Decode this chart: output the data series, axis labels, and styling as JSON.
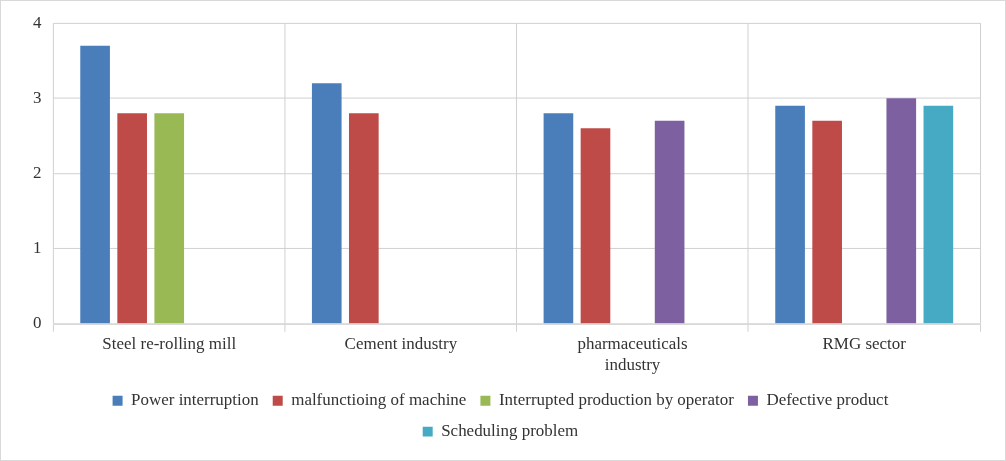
{
  "chart_data": {
    "type": "bar",
    "categories": [
      "Steel re-rolling mill",
      "Cement industry",
      "pharmaceuticals industry",
      "RMG sector"
    ],
    "series": [
      {
        "name": "Power interruption",
        "color": "#4a7ebb",
        "values": [
          3.7,
          3.2,
          2.8,
          2.9
        ]
      },
      {
        "name": "malfunctioing of machine",
        "color": "#be4b48",
        "values": [
          2.8,
          2.8,
          2.6,
          2.7
        ]
      },
      {
        "name": "Interrupted production by operator",
        "color": "#98b954",
        "values": [
          2.8,
          null,
          null,
          null
        ]
      },
      {
        "name": "Defective product",
        "color": "#7d60a0",
        "values": [
          null,
          null,
          2.7,
          3.0
        ]
      },
      {
        "name": "Scheduling problem",
        "color": "#46aac5",
        "values": [
          null,
          null,
          null,
          2.9
        ]
      }
    ],
    "ylim": [
      0,
      4
    ],
    "yticks": [
      0,
      1,
      2,
      3,
      4
    ],
    "grid": true,
    "legend": "bottom"
  }
}
